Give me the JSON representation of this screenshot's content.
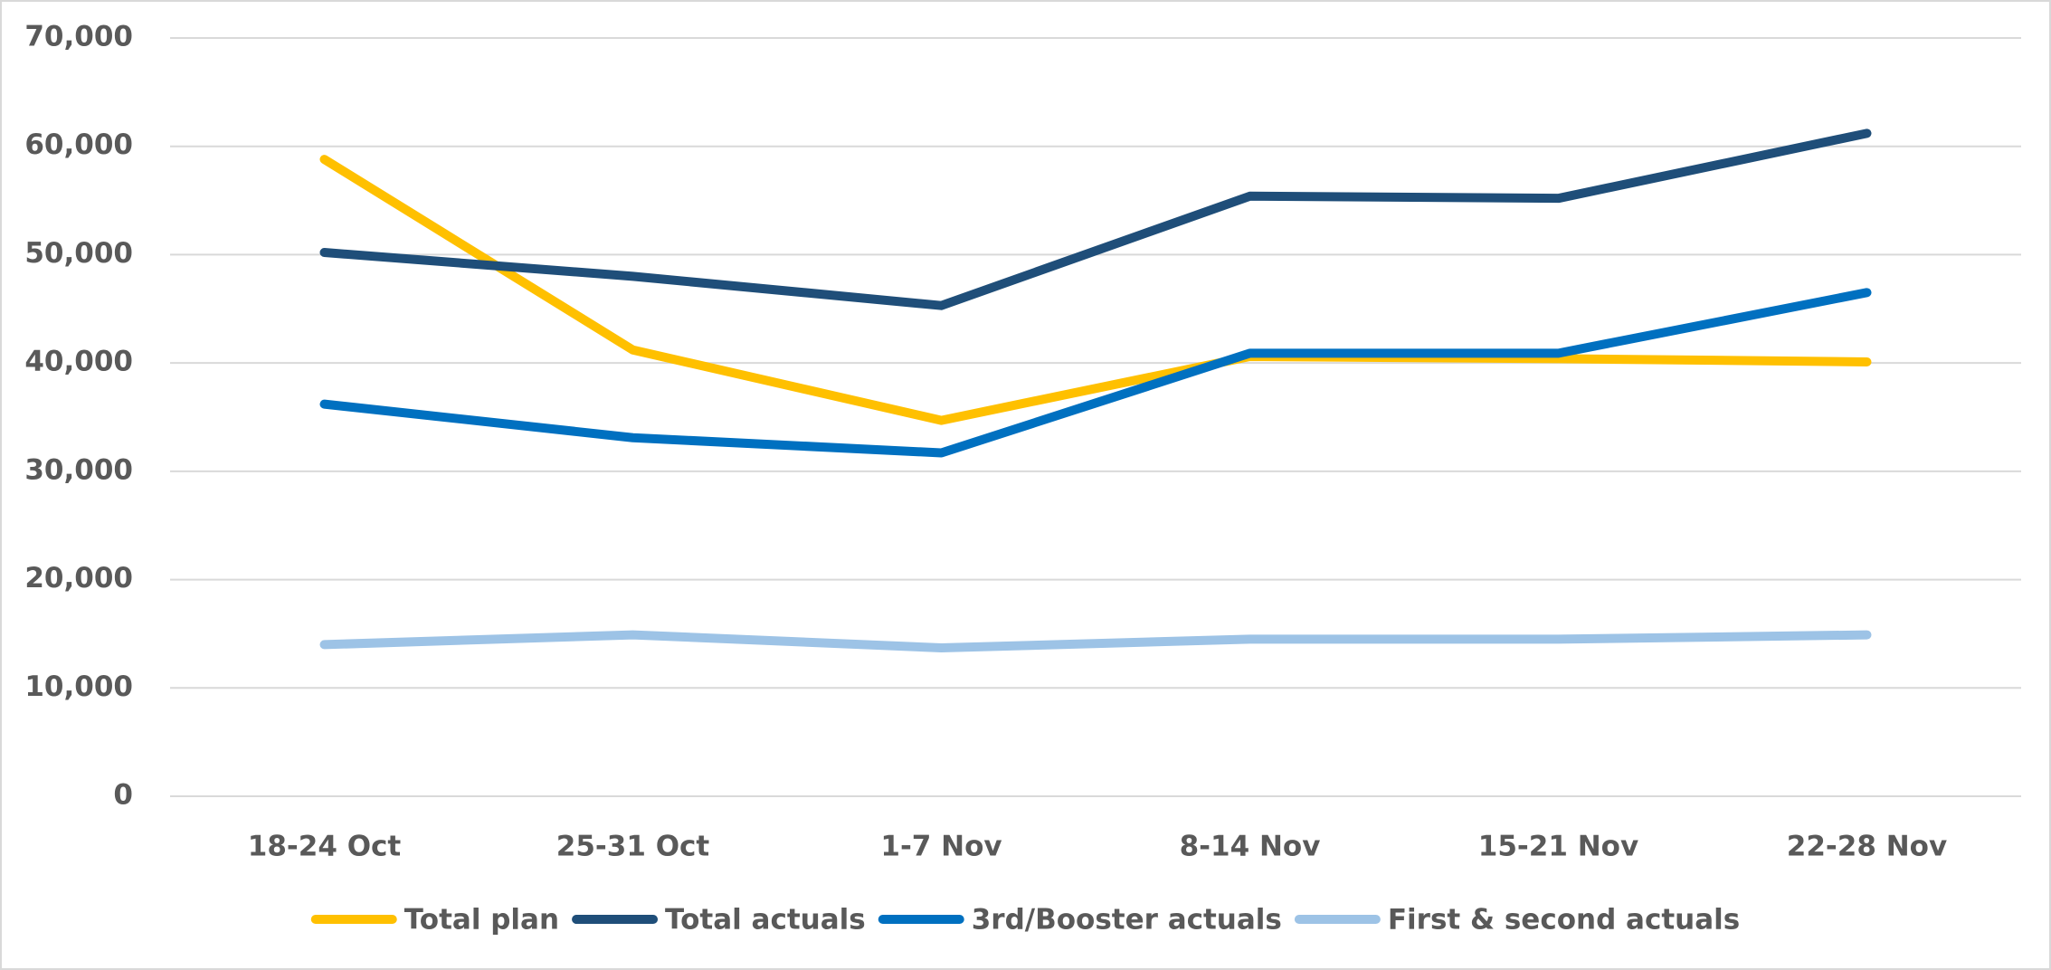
{
  "chart_data": {
    "type": "line",
    "categories": [
      "18-24 Oct",
      "25-31 Oct",
      "1-7 Nov",
      "8-14 Nov",
      "15-21 Nov",
      "22-28 Nov"
    ],
    "series": [
      {
        "name": "Total plan",
        "color": "#ffc000",
        "values": [
          58800,
          41200,
          34700,
          40600,
          40400,
          40100
        ]
      },
      {
        "name": "Total actuals",
        "color": "#1f4e79",
        "values": [
          50200,
          48000,
          45300,
          55400,
          55200,
          61200
        ]
      },
      {
        "name": "3rd/Booster actuals",
        "color": "#0070c0",
        "values": [
          36200,
          33100,
          31700,
          40900,
          40900,
          46500
        ]
      },
      {
        "name": "First & second actuals",
        "color": "#9dc3e6",
        "values": [
          14000,
          14900,
          13700,
          14500,
          14500,
          14900
        ]
      }
    ],
    "ylim": [
      0,
      70000
    ],
    "yticks": [
      0,
      {
        "value": 10000,
        "label": "10,000"
      },
      {
        "value": 20000,
        "label": "20,000"
      },
      {
        "value": 30000,
        "label": "30,000"
      },
      {
        "value": 40000,
        "label": "40,000"
      },
      {
        "value": 50000,
        "label": "50,000"
      },
      {
        "value": 60000,
        "label": "60,000"
      },
      {
        "value": 70000,
        "label": "70,000"
      }
    ],
    "grid": true,
    "legend": "bottom"
  }
}
